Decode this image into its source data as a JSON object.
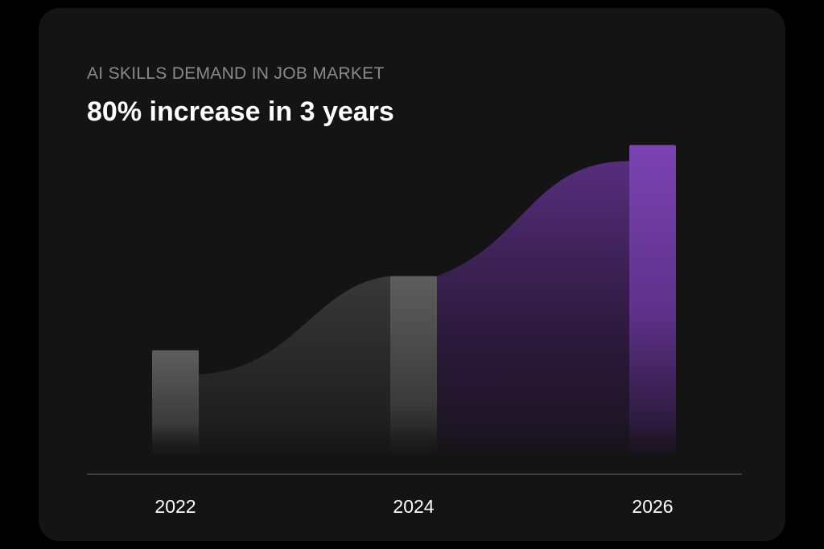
{
  "chart_data": {
    "type": "bar",
    "title": "80% increase in 3 years",
    "subtitle": "AI SKILLS DEMAND IN JOB MARKET",
    "categories": [
      "2022",
      "2024",
      "2026"
    ],
    "values": [
      42,
      72,
      125
    ],
    "ylim": [
      0,
      130
    ],
    "grid": false,
    "legend": "none",
    "highlight_category": "2026"
  },
  "colors": {
    "background": "#000000",
    "card": "#141414",
    "bar_default": "#5a5a5a",
    "bar_highlight": "#7a42b0",
    "area_default": "#3a3a3a",
    "area_highlight": "#5a2f82",
    "axis_line": "#4a4a4a",
    "eyebrow_text": "#8a8a8a",
    "headline_text": "#ffffff"
  }
}
